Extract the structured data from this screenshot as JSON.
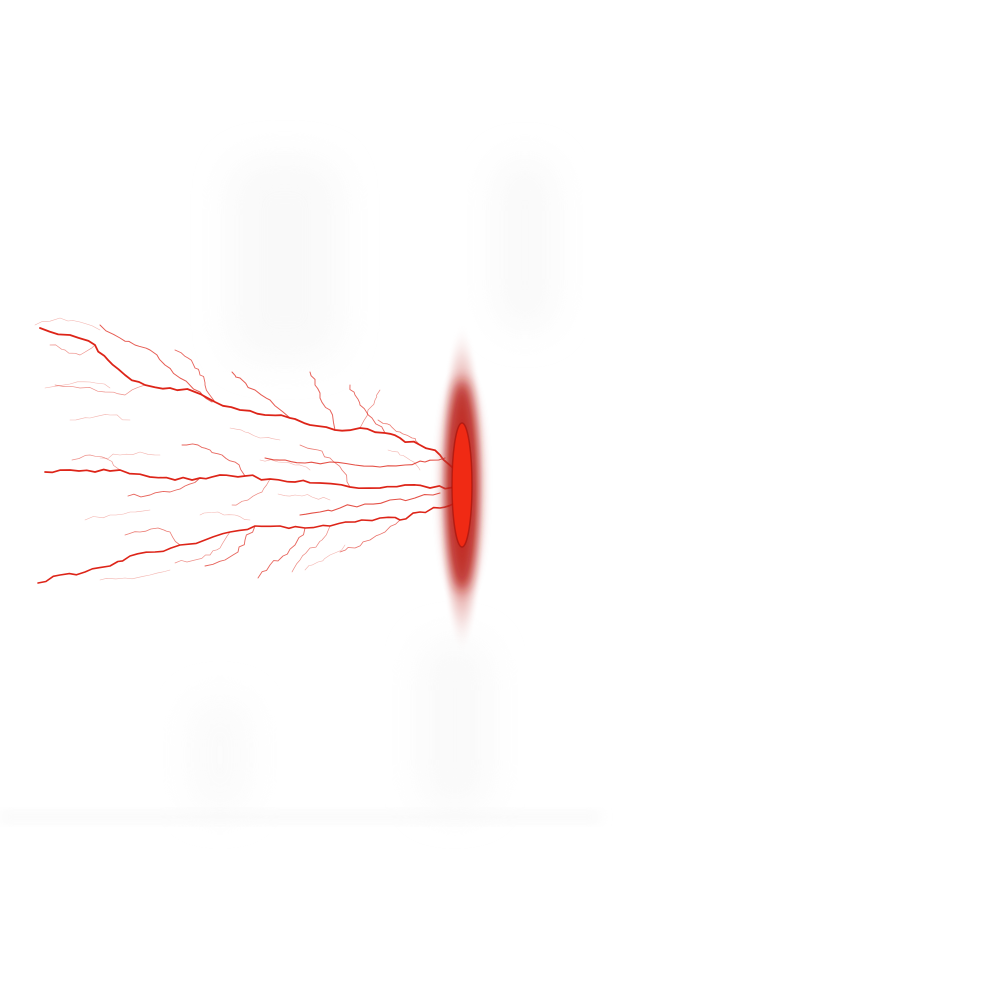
{
  "scene": {
    "background_color": "#ffffff",
    "glow_color": "#e31c12",
    "vein_color": "#dd2418",
    "ghost_color": "#f3f3f3"
  }
}
